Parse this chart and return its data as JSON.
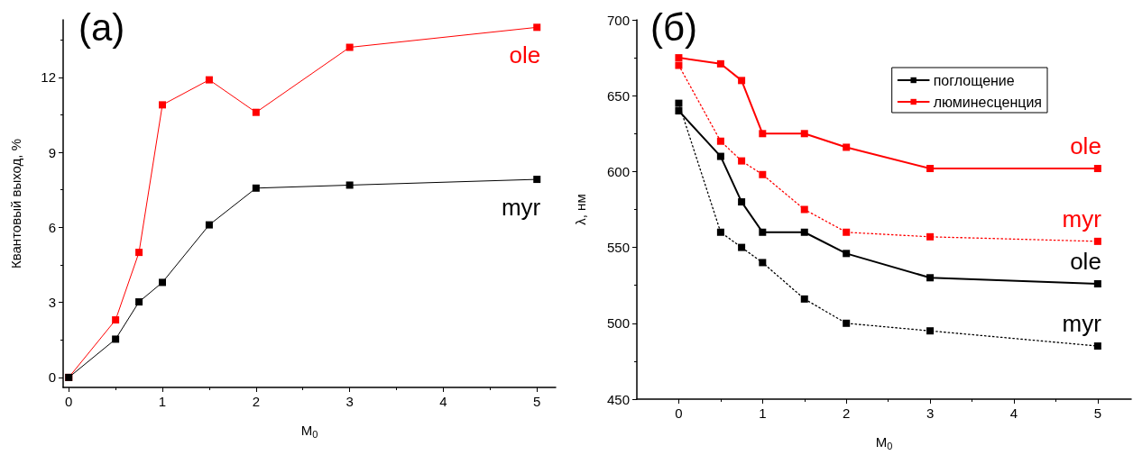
{
  "chart_data": [
    {
      "type": "line",
      "title": "(a)",
      "xlabel": "M$_{0}$",
      "ylabel": "Квантовый выход, %",
      "x": [
        0,
        0.5,
        0.75,
        1,
        1.5,
        2,
        3,
        5
      ],
      "series": [
        {
          "color": "#ff0000",
          "line_style": "solid",
          "values": [
            0,
            2.3,
            5.0,
            10.9,
            11.9,
            10.6,
            13.2,
            14.0
          ]
        },
        {
          "color": "#000000",
          "line_style": "solid",
          "values": [
            0,
            1.53,
            3.02,
            3.8,
            6.1,
            7.57,
            7.69,
            7.92
          ]
        }
      ],
      "xlim": [
        -0.06,
        5.2
      ],
      "xticks": [
        0,
        1,
        2,
        3,
        4,
        5
      ],
      "ylim": [
        -0.4,
        14.3
      ],
      "yticks": [
        0,
        3,
        6,
        9,
        12
      ],
      "marker": "square",
      "grid": false,
      "legend": false,
      "annotations": [
        "ole",
        "myr"
      ]
    },
    {
      "type": "line",
      "title": "(б)",
      "xlabel": "M$_{0}$",
      "ylabel": "λ, нм",
      "x": [
        0,
        0.5,
        0.75,
        1,
        1.5,
        2,
        3,
        5
      ],
      "series": [
        {
          "name": "поглощение",
          "color": "#000000",
          "line_style": "solid",
          "values": [
            640,
            610,
            580,
            560,
            560,
            546,
            530,
            526
          ]
        },
        {
          "name": "люминесценция",
          "color": "#ff0000",
          "line_style": "solid",
          "values": [
            675,
            671,
            660,
            625,
            625,
            616,
            602,
            602
          ]
        },
        {
          "color": "#ff0000",
          "line_style": "dotted",
          "values": [
            670,
            620,
            607,
            598,
            575,
            560,
            557,
            554
          ]
        },
        {
          "color": "#000000",
          "line_style": "dotted",
          "values": [
            645,
            560,
            550,
            540,
            516,
            500,
            495,
            485
          ]
        }
      ],
      "xlim": [
        -0.5,
        5.4
      ],
      "xticks": [
        0,
        1,
        2,
        3,
        4,
        5
      ],
      "ylim": [
        450,
        700
      ],
      "yticks": [
        450,
        500,
        550,
        600,
        650,
        700
      ],
      "marker": "square",
      "grid": false,
      "legend": "top right",
      "annotations": [
        "ole",
        "ole",
        "myr",
        "myr"
      ]
    }
  ]
}
